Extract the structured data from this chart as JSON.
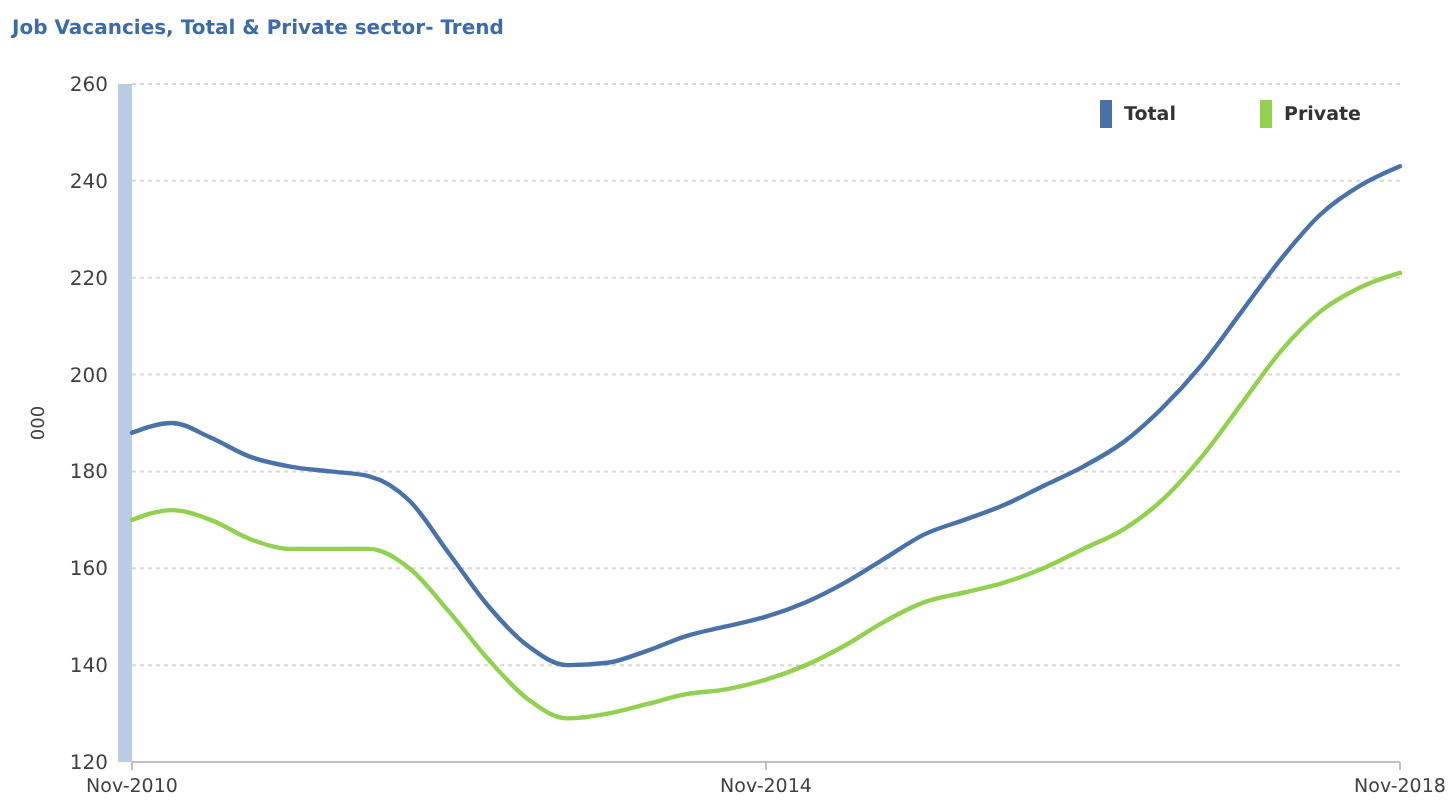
{
  "chart_data": {
    "type": "line",
    "title": "Job Vacancies, Total & Private sector- Trend",
    "ylabel": "000",
    "x": [
      "2010-11",
      "2011-02",
      "2011-05",
      "2011-08",
      "2011-11",
      "2012-02",
      "2012-05",
      "2012-08",
      "2012-11",
      "2013-02",
      "2013-05",
      "2013-08",
      "2013-11",
      "2014-02",
      "2014-05",
      "2014-08",
      "2014-11",
      "2015-02",
      "2015-05",
      "2015-08",
      "2015-11",
      "2016-02",
      "2016-05",
      "2016-08",
      "2016-11",
      "2017-02",
      "2017-05",
      "2017-08",
      "2017-11",
      "2018-02",
      "2018-05",
      "2018-08",
      "2018-11"
    ],
    "series": [
      {
        "name": "Total",
        "color": "#4a72a8",
        "values": [
          188,
          190,
          187,
          183,
          181,
          180,
          179,
          174,
          163,
          152,
          144,
          140,
          140.5,
          143,
          146,
          148,
          150,
          153,
          157,
          162,
          167,
          170,
          173,
          177,
          181,
          186,
          193,
          202,
          213,
          224,
          233,
          239,
          243
        ]
      },
      {
        "name": "Private",
        "color": "#92d050",
        "values": [
          170,
          172,
          170,
          166,
          164,
          164,
          164,
          160,
          151,
          141,
          133,
          129,
          130,
          132,
          134,
          135,
          137,
          140,
          144,
          149,
          153,
          155,
          157,
          160,
          164,
          168,
          174,
          183,
          194,
          205,
          213,
          218,
          221
        ]
      }
    ],
    "xlim": [
      "2010-11",
      "2018-11"
    ],
    "xticks": [
      {
        "value": "2010-11",
        "label": "Nov-2010"
      },
      {
        "value": "2014-11",
        "label": "Nov-2014"
      },
      {
        "value": "2018-11",
        "label": "Nov-2018"
      }
    ],
    "ylim": [
      120,
      260
    ],
    "yticks": [
      120,
      140,
      160,
      180,
      200,
      220,
      240,
      260
    ],
    "grid": "y",
    "legend": "top right",
    "marker": "none",
    "line_style": "solid"
  }
}
